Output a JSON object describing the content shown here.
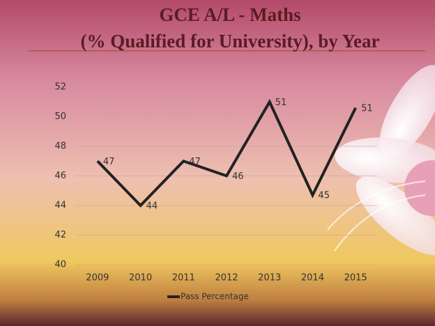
{
  "chart_data": {
    "type": "line",
    "title": "GCE A/L - Maths",
    "subtitle": "(% Qualified for University), by Year",
    "categories": [
      "2009",
      "2010",
      "2011",
      "2012",
      "2013",
      "2014",
      "2015"
    ],
    "series": [
      {
        "name": "Pass Percentage",
        "color": "#222222",
        "values": [
          47,
          44,
          47,
          46,
          51,
          44.7,
          50.6
        ],
        "value_labels": [
          "47",
          "44",
          "47",
          "46",
          "51",
          "45",
          "51"
        ]
      }
    ],
    "ylim": [
      40,
      52
    ],
    "yticks": [
      40,
      42,
      44,
      46,
      48,
      50,
      52
    ],
    "grid": true,
    "legend": "bottom"
  }
}
